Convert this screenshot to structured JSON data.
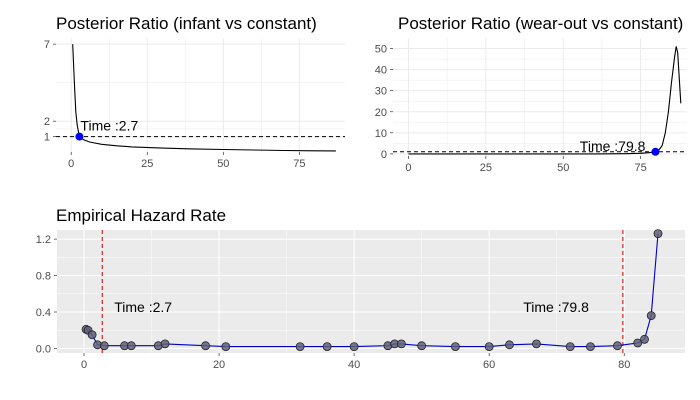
{
  "chart_data": [
    {
      "type": "line",
      "title": "Posterior Ratio (infant vs constant)",
      "xlim": [
        -5,
        90
      ],
      "ylim": [
        0,
        7.4
      ],
      "x_ticks": [
        0,
        25,
        50,
        75
      ],
      "y_ticks": [
        1,
        2,
        7
      ],
      "grid": true,
      "reference_line": 1,
      "series": [
        {
          "x": [
            0.5,
            1,
            1.5,
            2,
            2.7,
            4,
            6,
            10,
            15,
            20,
            30,
            40,
            50,
            60,
            70,
            80,
            87
          ],
          "y": [
            7,
            4.6,
            2.6,
            1.7,
            1.0,
            0.8,
            0.65,
            0.5,
            0.4,
            0.33,
            0.25,
            0.2,
            0.16,
            0.13,
            0.1,
            0.08,
            0.07
          ]
        }
      ],
      "highlight_point": {
        "x": 2.7,
        "y": 1.0,
        "color": "#0000ff"
      },
      "annotation": {
        "text": "Time :2.7",
        "x": 2.7,
        "y": 1
      }
    },
    {
      "type": "line",
      "title": "Posterior Ratio (wear-out vs constant)",
      "xlim": [
        -5,
        90
      ],
      "ylim": [
        -1,
        55
      ],
      "x_ticks": [
        0,
        25,
        50,
        75
      ],
      "y_ticks": [
        0,
        10,
        20,
        30,
        40,
        50
      ],
      "grid": true,
      "reference_line": 1,
      "series": [
        {
          "x": [
            0,
            20,
            40,
            60,
            70,
            75,
            78,
            79.8,
            81,
            82,
            83,
            84,
            85,
            86,
            86.5,
            87,
            88
          ],
          "y": [
            0,
            0,
            0,
            0,
            0.1,
            0.3,
            0.6,
            1.0,
            2,
            4,
            10,
            20,
            34,
            46,
            51,
            48,
            24
          ]
        }
      ],
      "highlight_point": {
        "x": 79.8,
        "y": 1.0,
        "color": "#0000ff"
      },
      "annotation": {
        "text": "Time :79.8",
        "x": 79.8,
        "y": 1
      }
    },
    {
      "type": "line",
      "title": "Empirical Hazard Rate",
      "xlim": [
        -4,
        89
      ],
      "ylim": [
        -0.05,
        1.3
      ],
      "x_ticks": [
        0,
        20,
        40,
        60,
        80
      ],
      "y_ticks": [
        0.0,
        0.4,
        0.8,
        1.2
      ],
      "grid": true,
      "background": "#ebebeb",
      "series": [
        {
          "color": "#0000cd",
          "x": [
            0.3,
            0.6,
            1.2,
            2,
            3,
            6,
            7,
            11,
            12,
            18,
            21,
            32,
            36,
            40,
            45,
            46,
            47,
            50,
            55,
            60,
            63,
            67,
            72,
            75,
            79,
            82,
            83,
            84,
            85
          ],
          "y": [
            0.21,
            0.2,
            0.15,
            0.04,
            0.03,
            0.03,
            0.03,
            0.03,
            0.05,
            0.03,
            0.02,
            0.02,
            0.02,
            0.02,
            0.03,
            0.05,
            0.05,
            0.03,
            0.02,
            0.02,
            0.04,
            0.05,
            0.02,
            0.02,
            0.03,
            0.06,
            0.1,
            0.36,
            1.26
          ]
        }
      ],
      "vertical_lines": [
        {
          "x": 2.7,
          "label": "Time :2.7",
          "color": "#cc0000"
        },
        {
          "x": 79.8,
          "label": "Time :79.8",
          "color": "#cc0000"
        }
      ]
    }
  ]
}
